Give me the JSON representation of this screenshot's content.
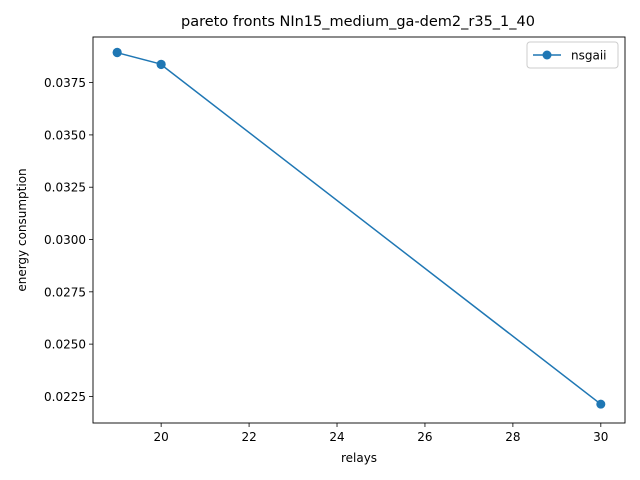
{
  "chart_data": {
    "type": "line",
    "title": "pareto fronts NIn15_medium_ga-dem2_r35_1_40",
    "xlabel": "relays",
    "ylabel": "energy consumption",
    "xlim": [
      18.45,
      30.55
    ],
    "ylim": [
      0.02123,
      0.03968
    ],
    "xticks": [
      20,
      22,
      24,
      26,
      28,
      30
    ],
    "yticks": [
      0.0225,
      0.025,
      0.0275,
      0.03,
      0.0325,
      0.035,
      0.0375
    ],
    "xtick_labels": [
      "20",
      "22",
      "24",
      "26",
      "28",
      "30"
    ],
    "ytick_labels": [
      "0.0225",
      "0.0250",
      "0.0275",
      "0.0300",
      "0.0325",
      "0.0350",
      "0.0375"
    ],
    "grid": false,
    "legend_position": "upper right",
    "series": [
      {
        "name": "nsgaii",
        "color": "#1f77b4",
        "marker": "circle",
        "x": [
          19,
          19,
          20,
          20,
          30
        ],
        "y": [
          0.03895,
          0.03893,
          0.03838,
          0.03836,
          0.02213
        ]
      }
    ]
  }
}
